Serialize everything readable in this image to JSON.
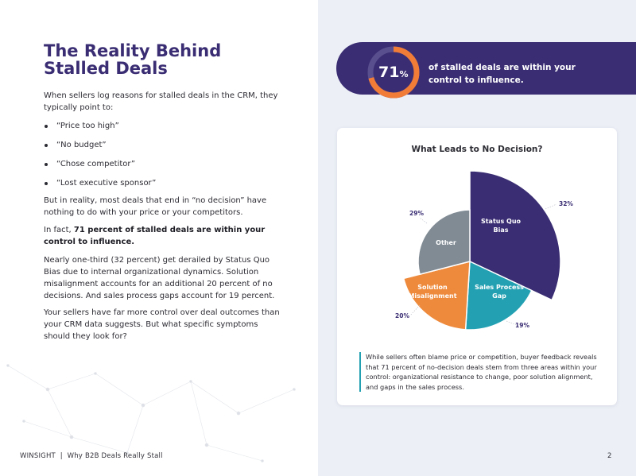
{
  "page": {
    "title_line1": "The Reality Behind",
    "title_line2": "Stalled Deals",
    "intro": "When sellers log reasons for stalled deals in the CRM, they typically point to:",
    "bullets": [
      "“Price too high”",
      "“No budget”",
      "“Chose competitor”",
      "“Lost executive sponsor”"
    ],
    "para_reality": "But in reality, most deals that end in “no decision” have nothing to do with your price or your competitors.",
    "para_fact_prefix": "In fact, ",
    "para_fact_bold": "71 percent of stalled deals are within your control to influence.",
    "para_third": "Nearly one-third (32 percent) get derailed by Status Quo Bias due to internal organizational dynamics. Solution misalignment accounts for an additional 20 percent of no decisions. And sales process gaps account for 19 percent.",
    "para_control": "Your sellers have far more control over deal outcomes than your CRM data suggests. But what specific symptoms should they look for?"
  },
  "footer": {
    "left": "WINSIGHT  |  Why B2B Deals Really Stall",
    "page_number": "2"
  },
  "stat": {
    "value": "71",
    "unit": "%",
    "fraction": 0.71,
    "caption": "of stalled deals are within your control to influence."
  },
  "note": "While sellers often blame price or competition, buyer feedback reveals that 71 percent of no-decision deals stem from three areas within your control: organizational resistance to change, poor solution alignment, and gaps in the sales process.",
  "colors": {
    "brand_purple": "#3a2d73",
    "status_quo": "#3a2d73",
    "sales_process": "#23a1b3",
    "solution": "#ee8a3c",
    "other": "#808b94",
    "ring_track": "#5a4f8e",
    "ring_orange": "#f07c38"
  },
  "chart_data": {
    "type": "pie",
    "title": "What Leads to No Decision?",
    "slices": [
      {
        "label": "Status Quo Bias",
        "value": 32,
        "value_label": "32%",
        "color": "#3a2d73"
      },
      {
        "label": "Sales Process Gap",
        "value": 19,
        "value_label": "19%",
        "color": "#23a1b3"
      },
      {
        "label": "Solution Misalignment",
        "value": 20,
        "value_label": "20%",
        "color": "#ee8a3c"
      },
      {
        "label": "Other",
        "value": 29,
        "value_label": "29%",
        "color": "#808b94"
      }
    ]
  }
}
